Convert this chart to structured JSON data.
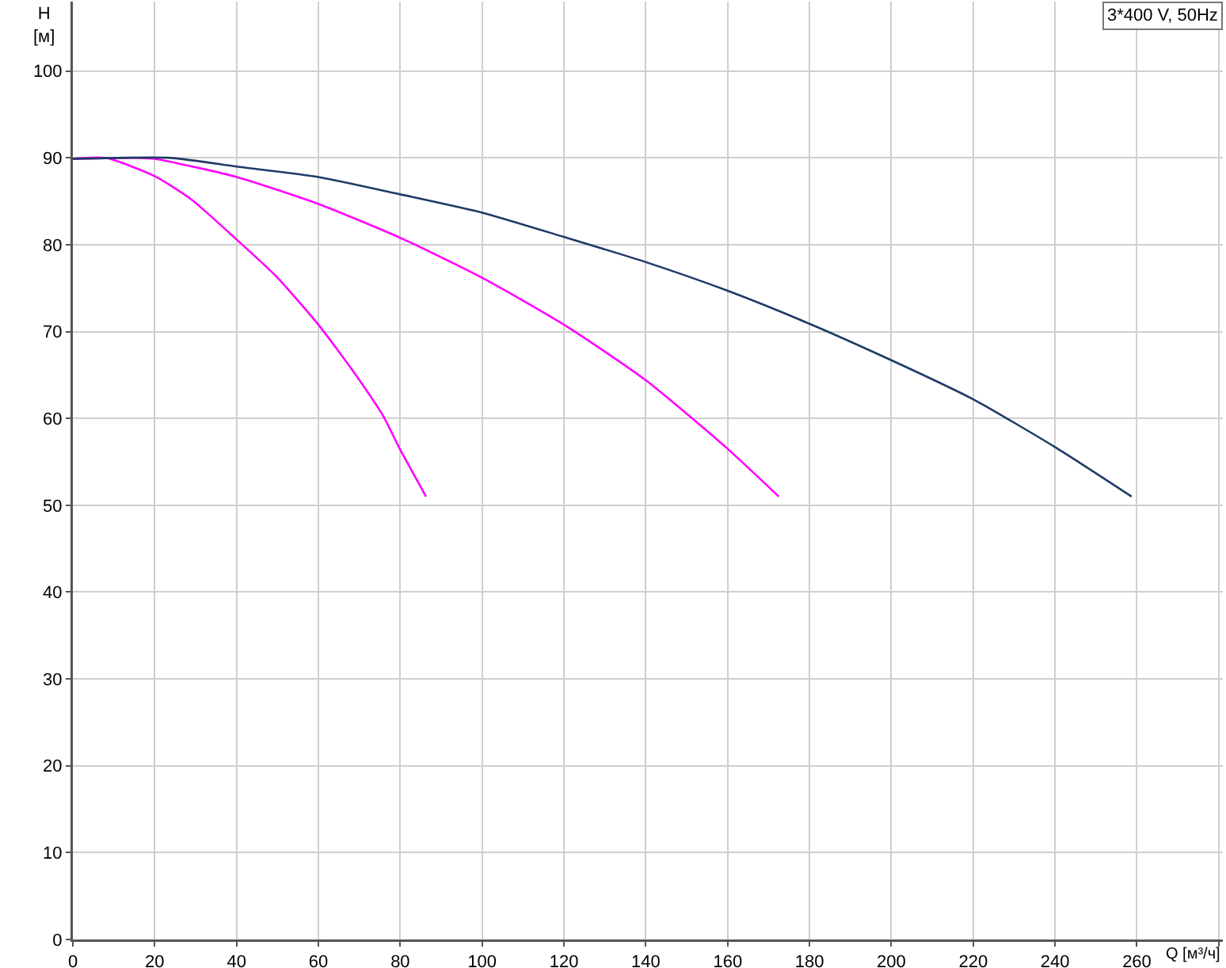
{
  "chart_data": {
    "type": "line",
    "xlabel": "Q [м³/ч]",
    "ylabel": "H [м]",
    "annotations": [
      "3*400 V, 50Hz"
    ],
    "xlim": [
      0,
      281
    ],
    "ylim": [
      0,
      108
    ],
    "xticks": [
      0,
      20,
      40,
      60,
      80,
      100,
      120,
      140,
      160,
      180,
      200,
      220,
      240,
      260,
      {
        "value": 280,
        "label": null
      }
    ],
    "yticks": [
      0,
      10,
      20,
      30,
      40,
      50,
      60,
      70,
      80,
      90,
      100
    ],
    "grid": true,
    "marker": "none",
    "line_style": "solid",
    "series": [
      {
        "color": "#ff00ff",
        "x": [
          0,
          8,
          20,
          29,
          40,
          49.6,
          60,
          69.3,
          75.8,
          80,
          86.3
        ],
        "values": [
          89.9,
          90,
          87.9,
          85.2,
          80.6,
          76.4,
          70.8,
          64.9,
          60.3,
          56.4,
          51
        ]
      },
      {
        "color": "#ff00ff",
        "x": [
          0,
          16,
          20,
          40,
          60,
          80,
          100,
          120,
          140,
          160,
          172.5
        ],
        "values": [
          89.9,
          90,
          89.9,
          87.8,
          84.7,
          80.8,
          76.2,
          70.8,
          64.4,
          56.5,
          51
        ]
      },
      {
        "color": "#1f3a68",
        "x": [
          0,
          24,
          40,
          60,
          80,
          100,
          120,
          140,
          160,
          180,
          200,
          220,
          240,
          258.7
        ],
        "values": [
          89.9,
          90,
          89,
          87.8,
          85.8,
          83.7,
          80.9,
          78,
          74.7,
          70.9,
          66.7,
          62.2,
          56.7,
          51
        ]
      }
    ]
  }
}
